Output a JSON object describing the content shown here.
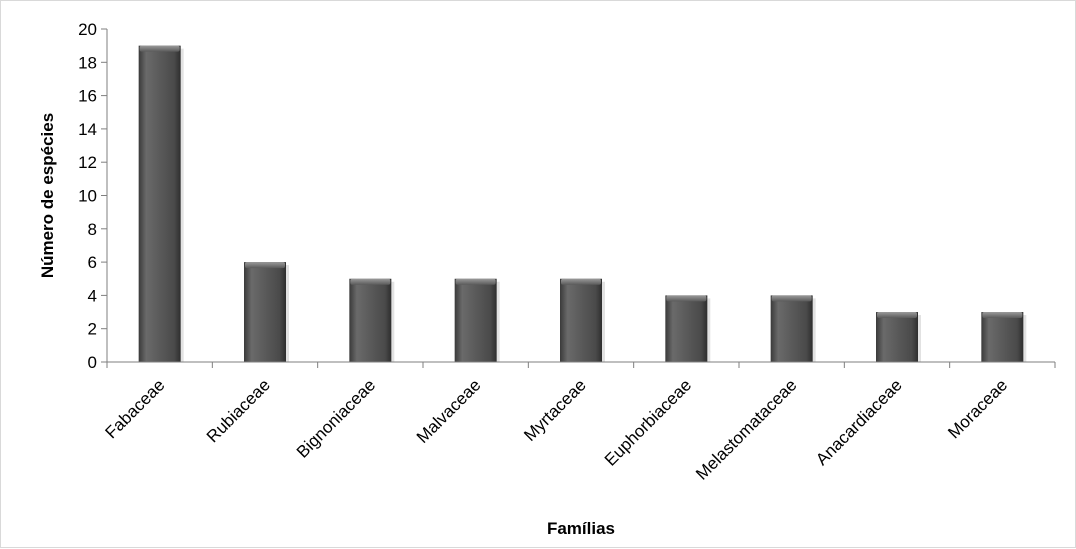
{
  "chart_data": {
    "type": "bar",
    "title": "",
    "xlabel": "Famílias",
    "ylabel": "Número de espécies",
    "categories": [
      "Fabaceae",
      "Rubiaceae",
      "Bignoniaceae",
      "Malvaceae",
      "Myrtaceae",
      "Euphorbiaceae",
      "Melastomataceae",
      "Anacardiaceae",
      "Moraceae"
    ],
    "values": [
      19,
      6,
      5,
      5,
      5,
      4,
      4,
      3,
      3
    ],
    "ylim": [
      0,
      20
    ],
    "yticks": [
      0,
      2,
      4,
      6,
      8,
      10,
      12,
      14,
      16,
      18,
      20
    ],
    "grid": false,
    "legend": "none",
    "bar_color": "#5a5a5a"
  }
}
